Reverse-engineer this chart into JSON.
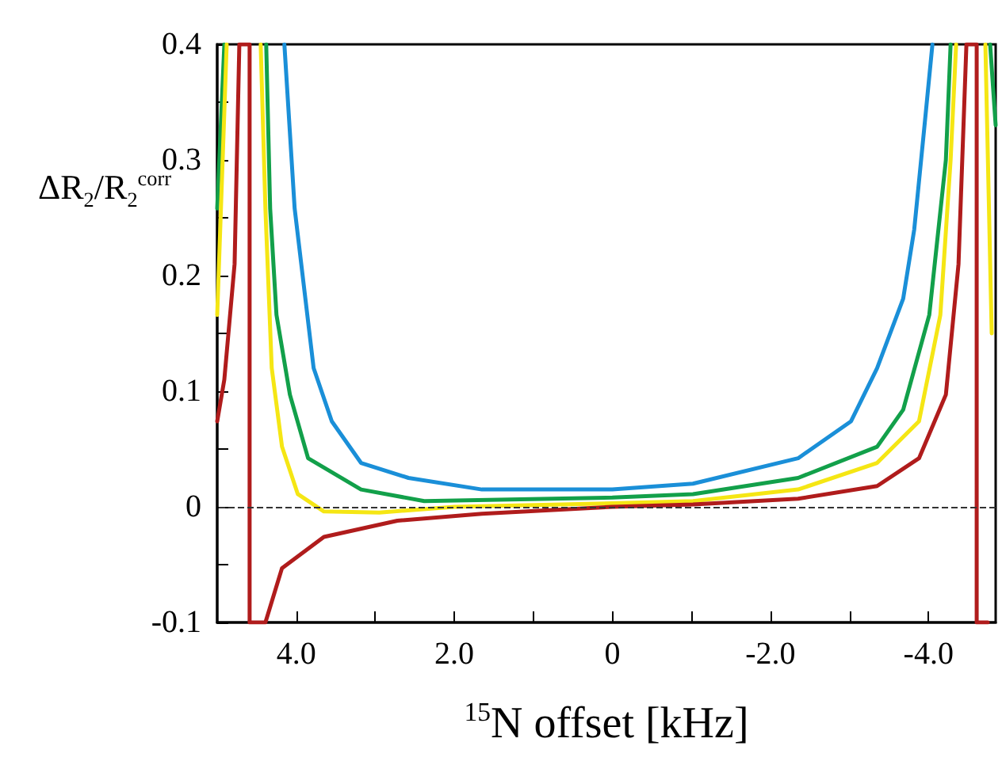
{
  "chart_data": {
    "type": "line",
    "xlabel": "$^{15}$N offset [kHz]",
    "ylabel": "ΔR$_{2}$/R$_{2}$$^{corr}$",
    "xlim": [
      5.0,
      -4.85
    ],
    "xticks": [
      {
        "value": 4,
        "label": "4.0"
      },
      {
        "value": 3,
        "label": null
      },
      {
        "value": 2,
        "label": "2.0"
      },
      {
        "value": 1,
        "label": null
      },
      0,
      {
        "value": -1,
        "label": null
      },
      {
        "value": -2,
        "label": "-2.0"
      },
      {
        "value": -3,
        "label": null
      },
      {
        "value": -4,
        "label": "-4.0"
      }
    ],
    "ylim": [
      -0.1,
      0.4
    ],
    "yticks": [
      -0.1,
      {
        "value": -0.05,
        "label": null
      },
      0,
      {
        "value": 0.05,
        "label": null
      },
      0.1,
      {
        "value": 0.15,
        "label": null
      },
      0.2,
      {
        "value": 0.25,
        "label": null
      },
      0.3,
      {
        "value": 0.35,
        "label": null
      },
      0.4
    ],
    "grid": false,
    "marker": "none",
    "line_style": "solid",
    "ref_lines": [
      {
        "axis": "y",
        "value": 0,
        "label": null,
        "color": "#333333",
        "line_style": "dashed"
      }
    ],
    "series": [
      {
        "color": "#1a8fd8",
        "x": [
          4.15,
          4.02,
          3.78,
          3.55,
          3.18,
          2.58,
          1.65,
          0,
          -1.02,
          -2.35,
          -3.02,
          -3.35,
          -3.68,
          -3.82,
          -3.95,
          -4.05
        ],
        "values": [
          0.4,
          0.258,
          0.12,
          0.074,
          0.038,
          0.025,
          0.015,
          0.015,
          0.02,
          0.042,
          0.074,
          0.12,
          0.18,
          0.24,
          0.33,
          0.4
        ]
      },
      {
        "color": "#12a04a",
        "x": [
          5.0,
          4.91,
          4.6,
          4.38,
          4.33,
          4.25,
          4.08,
          3.85,
          3.18,
          2.38,
          0,
          -1.02,
          -2.35,
          -3.35,
          -3.68,
          -4.01,
          -4.22,
          -4.28,
          -4.6,
          -4.78,
          -4.85
        ],
        "values": [
          0.258,
          0.4,
          null,
          0.4,
          0.258,
          0.166,
          0.097,
          0.042,
          0.015,
          0.005,
          0.008,
          0.011,
          0.025,
          0.052,
          0.084,
          0.166,
          0.3,
          0.4,
          null,
          0.4,
          0.33
        ]
      },
      {
        "color": "#f5e614",
        "x": [
          5.0,
          4.88,
          4.6,
          4.45,
          4.39,
          4.31,
          4.18,
          3.98,
          3.65,
          2.95,
          2.0,
          0,
          -1.02,
          -2.35,
          -3.35,
          -3.88,
          -4.15,
          -4.28,
          -4.35,
          -4.6,
          -4.72,
          -4.8
        ],
        "values": [
          0.166,
          0.4,
          null,
          0.4,
          0.258,
          0.12,
          0.052,
          0.011,
          -0.004,
          -0.005,
          0,
          0.003,
          0.005,
          0.015,
          0.038,
          0.074,
          0.166,
          0.3,
          0.4,
          null,
          0.4,
          0.15
        ]
      },
      {
        "color": "#b01c1c",
        "x": [
          5.0,
          4.91,
          4.78,
          4.72,
          4.59,
          4.59,
          4.39,
          4.18,
          3.65,
          2.72,
          1.65,
          0,
          -1.02,
          -2.35,
          -3.35,
          -3.88,
          -4.22,
          -4.38,
          -4.48,
          -4.61,
          -4.61,
          -4.75
        ],
        "values": [
          0.074,
          0.11,
          0.21,
          0.4,
          0.4,
          -0.1,
          -0.1,
          -0.053,
          -0.026,
          -0.012,
          -0.006,
          0,
          0.002,
          0.007,
          0.018,
          0.042,
          0.097,
          0.21,
          0.4,
          0.4,
          -0.1,
          -0.1
        ]
      }
    ]
  }
}
